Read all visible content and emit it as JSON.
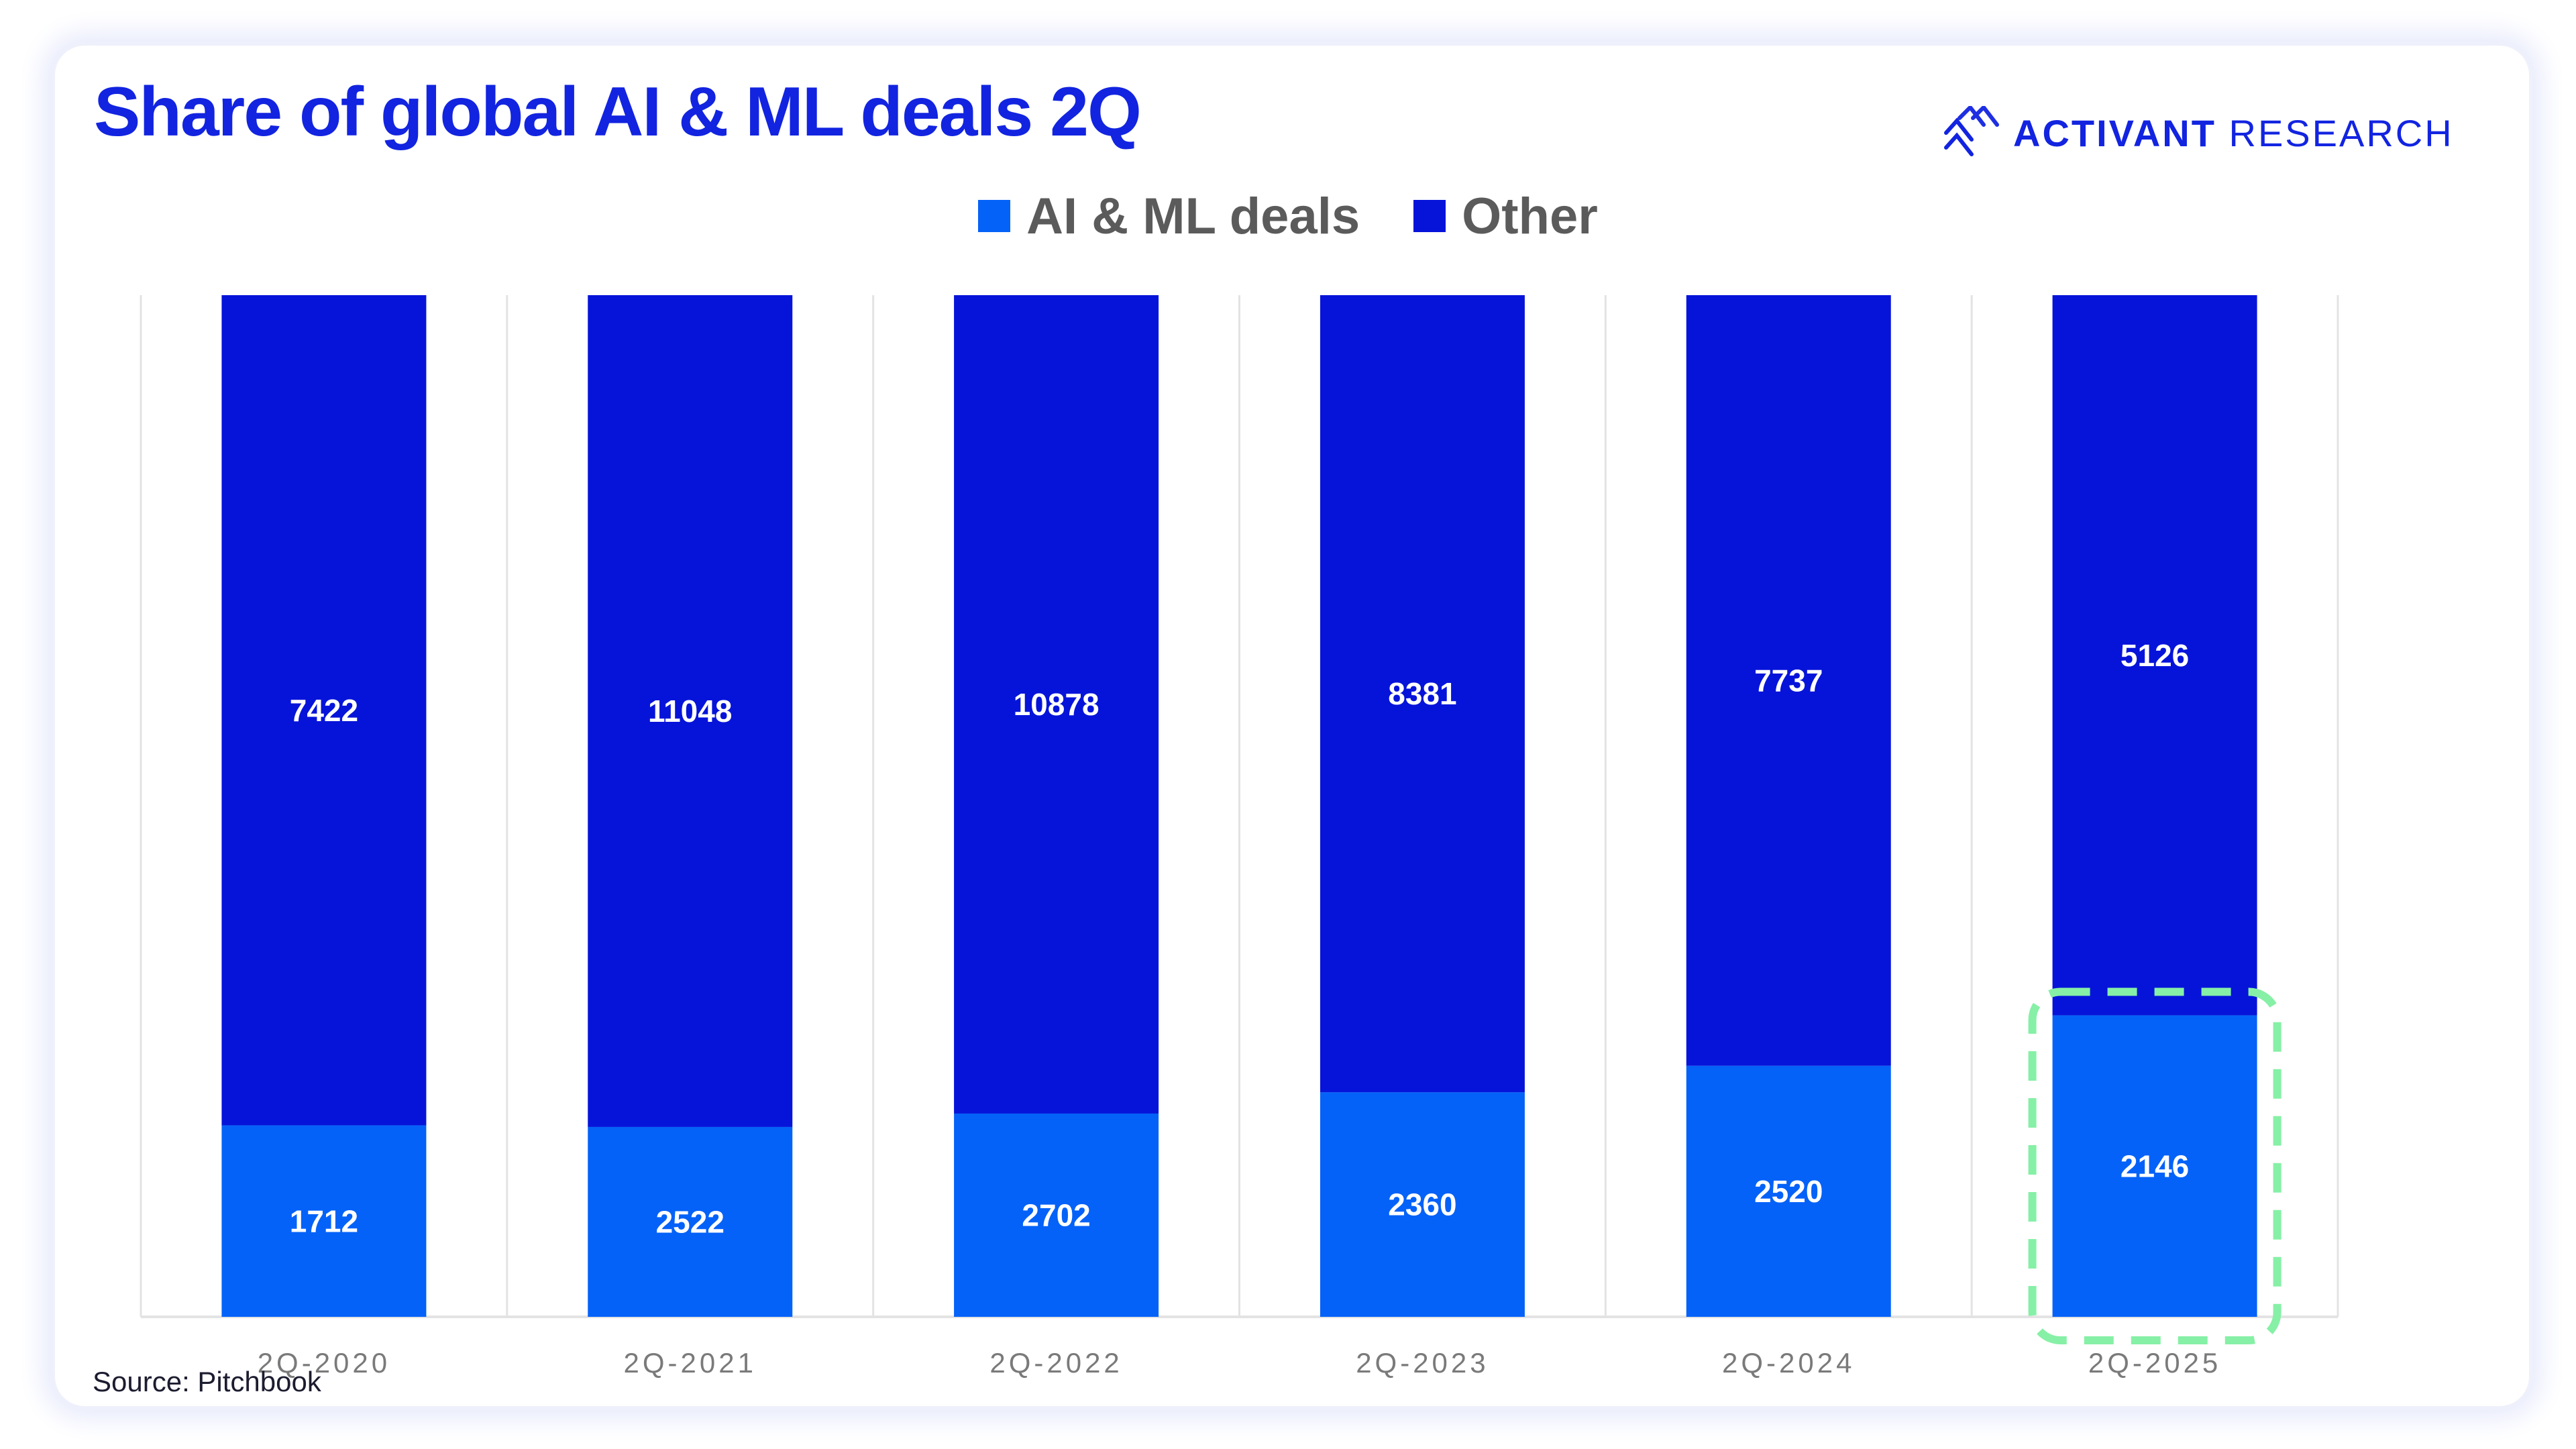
{
  "brand": {
    "name_bold": "ACTIVANT",
    "name_light": "RESEARCH",
    "logo_icon": "activant-chevrons-icon"
  },
  "colors": {
    "title": "#1224e0",
    "ai_ml": "#0562f8",
    "other": "#0614d9",
    "highlight": "#86f0a6",
    "grid": "#e3e3e3"
  },
  "highlight": {
    "category": "2Q-2025",
    "style": "dashed-rounded-box"
  },
  "source": "Source: Pitchbook",
  "chart_data": {
    "type": "bar",
    "stacked": true,
    "normalized_to_100_percent": true,
    "title": "Share of global AI & ML deals 2Q",
    "categories": [
      "2Q-2020",
      "2Q-2021",
      "2Q-2022",
      "2Q-2023",
      "2Q-2024",
      "2Q-2025"
    ],
    "series": [
      {
        "name": "AI & ML deals",
        "values": [
          1712,
          2522,
          2702,
          2360,
          2520,
          2146
        ]
      },
      {
        "name": "Other",
        "values": [
          7422,
          11048,
          10878,
          8381,
          7737,
          5126
        ]
      }
    ],
    "legend_position": "top-center",
    "xlabel": "",
    "ylabel": "",
    "vertical_gridlines": true
  }
}
